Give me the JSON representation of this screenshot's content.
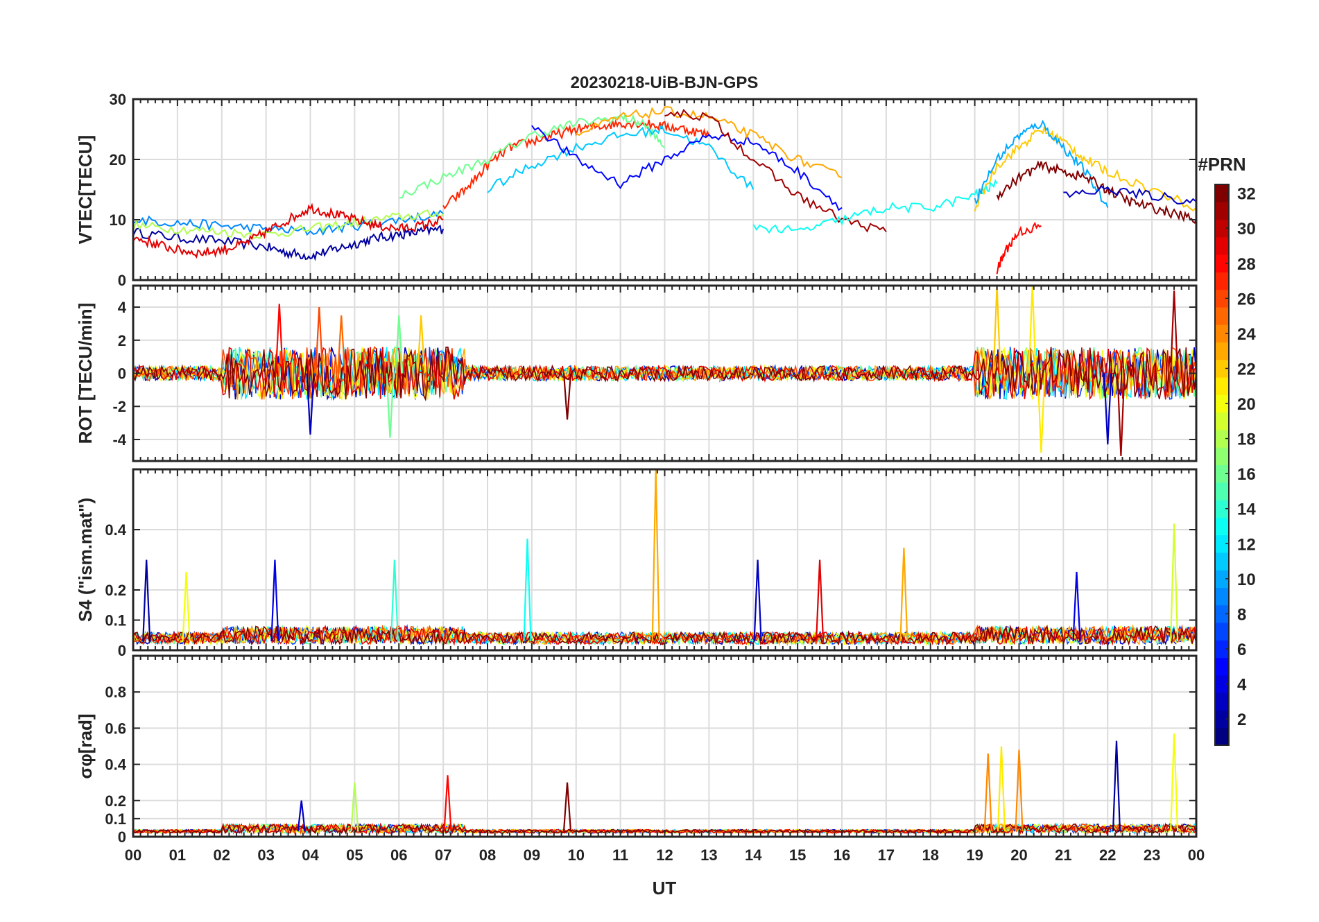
{
  "chart_data": [
    {
      "type": "line",
      "title": "20230218-UiB-BJN-GPS",
      "ylabel": "VTEC[TECU]",
      "ylim": [
        0,
        30
      ],
      "yticks": [
        "0",
        "10",
        "20",
        "30"
      ],
      "xlim": [
        0,
        24
      ],
      "x_unit": "hours UT",
      "grid": true,
      "series_note": "one trace per satellite PRN (1-32), colored by PRN",
      "series": [
        {
          "prn": 2,
          "x": [
            0,
            1,
            2,
            3,
            3.5,
            4,
            4.5,
            5,
            5.5,
            6,
            6.5,
            7
          ],
          "values": [
            8,
            7,
            6.5,
            5.5,
            4.5,
            4,
            5,
            6,
            7,
            7.5,
            8,
            8.5
          ]
        },
        {
          "prn": 9,
          "x": [
            0,
            1,
            2,
            3,
            4,
            5,
            6,
            7
          ],
          "values": [
            10,
            9.5,
            9,
            8.5,
            8,
            9,
            10,
            11
          ]
        },
        {
          "prn": 18,
          "x": [
            0,
            1,
            2,
            3,
            4,
            5,
            6,
            7
          ],
          "values": [
            9,
            8.5,
            8,
            7.5,
            8.5,
            9.5,
            10.5,
            11
          ]
        },
        {
          "prn": 29,
          "x": [
            0,
            0.5,
            1,
            1.5,
            2,
            2.5,
            3,
            3.5,
            4,
            4.5,
            5,
            5.5,
            6,
            6.5,
            7
          ],
          "values": [
            7,
            6,
            5,
            4.5,
            5,
            6,
            8,
            10,
            12,
            11,
            10,
            9,
            8.5,
            9,
            10
          ]
        },
        {
          "prn": 27,
          "x": [
            7,
            7.5,
            8,
            8.5,
            9,
            9.5,
            10,
            10.5,
            11,
            11.5,
            12,
            12.5,
            13
          ],
          "values": [
            12,
            15,
            19,
            22,
            23,
            24,
            25,
            25.5,
            26,
            26,
            25.5,
            25,
            24
          ]
        },
        {
          "prn": 16,
          "x": [
            6,
            7,
            8,
            9,
            10,
            11,
            11.5,
            12
          ],
          "values": [
            14,
            17,
            20,
            24,
            26,
            27,
            26,
            22
          ]
        },
        {
          "prn": 11,
          "x": [
            8,
            9,
            10,
            11,
            12,
            13,
            14
          ],
          "values": [
            15,
            19,
            22,
            24,
            25,
            22,
            15
          ]
        },
        {
          "prn": 5,
          "x": [
            9,
            10,
            11,
            12,
            13,
            14,
            15,
            16
          ],
          "values": [
            26,
            20,
            16,
            20,
            24,
            23,
            18,
            12
          ]
        },
        {
          "prn": 23,
          "x": [
            10,
            11,
            12,
            13,
            14,
            15,
            16
          ],
          "values": [
            24,
            27,
            28,
            27,
            24,
            20,
            17
          ]
        },
        {
          "prn": 31,
          "x": [
            12,
            13,
            14,
            15,
            16,
            17
          ],
          "values": [
            28,
            27,
            20,
            14,
            10,
            8
          ]
        },
        {
          "prn": 13,
          "x": [
            14,
            15,
            16,
            17,
            18,
            19,
            19.5
          ],
          "values": [
            9,
            8,
            10,
            12,
            12,
            14,
            16
          ]
        },
        {
          "prn": 22,
          "x": [
            19,
            19.5,
            20,
            20.5,
            21,
            21.5,
            22,
            23,
            24
          ],
          "values": [
            12,
            19,
            22,
            25,
            23,
            20,
            18,
            15,
            12
          ]
        },
        {
          "prn": 10,
          "x": [
            19,
            19.5,
            20,
            20.5,
            21,
            21.5,
            22
          ],
          "values": [
            13,
            20,
            24,
            26,
            22,
            18,
            12
          ]
        },
        {
          "prn": 32,
          "x": [
            19.5,
            20,
            20.5,
            21,
            21.5,
            22,
            22.5,
            23,
            23.5,
            24
          ],
          "values": [
            14,
            17,
            19,
            18,
            17,
            15,
            13,
            12,
            11,
            10
          ]
        },
        {
          "prn": 28,
          "x": [
            19.5,
            19.7,
            20,
            20.5
          ],
          "values": [
            1.5,
            5,
            8,
            9
          ]
        },
        {
          "prn": 3,
          "x": [
            21,
            22,
            23,
            24
          ],
          "values": [
            14,
            15,
            14,
            13
          ]
        }
      ]
    },
    {
      "type": "line",
      "ylabel": "ROT [TECU/min]",
      "ylim": [
        -5.3,
        5.3
      ],
      "yticks": [
        "-4",
        "-2",
        "0",
        "2",
        "4"
      ],
      "xlim": [
        0,
        24
      ],
      "grid": true,
      "series_note": "rate of TEC per PRN; noisy traces around 0, stronger spikes 02-07 UT and 19-24 UT",
      "spikes": [
        {
          "x": 3.3,
          "value": 4.2,
          "prn": 28
        },
        {
          "x": 4.2,
          "value": 4.0,
          "prn": 26
        },
        {
          "x": 4.7,
          "value": 3.5,
          "prn": 25
        },
        {
          "x": 6.0,
          "value": 3.5,
          "prn": 16
        },
        {
          "x": 6.5,
          "value": 3.5,
          "prn": 22
        },
        {
          "x": 5.8,
          "value": -3.9,
          "prn": 16
        },
        {
          "x": 4.0,
          "value": -3.7,
          "prn": 3
        },
        {
          "x": 9.8,
          "value": -2.8,
          "prn": 32
        },
        {
          "x": 19.5,
          "value": 5.3,
          "prn": 22
        },
        {
          "x": 20.3,
          "value": 5.3,
          "prn": 21
        },
        {
          "x": 20.5,
          "value": -4.8,
          "prn": 21
        },
        {
          "x": 22.3,
          "value": -5.0,
          "prn": 31
        },
        {
          "x": 23.5,
          "value": 5.0,
          "prn": 31
        },
        {
          "x": 22.0,
          "value": -4.3,
          "prn": 3
        }
      ]
    },
    {
      "type": "line",
      "ylabel": "S4 (\"ism.mat\")",
      "ylim": [
        0,
        0.6
      ],
      "yticks": [
        "0",
        "0.1",
        "0.2",
        "0.4"
      ],
      "xlim": [
        0,
        24
      ],
      "grid": true,
      "series_note": "amplitude scintillation index per PRN",
      "spikes": [
        {
          "x": 0.3,
          "value": 0.3,
          "prn": 2
        },
        {
          "x": 1.2,
          "value": 0.26,
          "prn": 20
        },
        {
          "x": 3.2,
          "value": 0.3,
          "prn": 4
        },
        {
          "x": 5.9,
          "value": 0.3,
          "prn": 14
        },
        {
          "x": 8.9,
          "value": 0.37,
          "prn": 13
        },
        {
          "x": 11.8,
          "value": 0.6,
          "prn": 23
        },
        {
          "x": 14.1,
          "value": 0.3,
          "prn": 3
        },
        {
          "x": 15.5,
          "value": 0.3,
          "prn": 29
        },
        {
          "x": 17.4,
          "value": 0.34,
          "prn": 23
        },
        {
          "x": 21.3,
          "value": 0.26,
          "prn": 4
        },
        {
          "x": 23.5,
          "value": 0.42,
          "prn": 19
        }
      ]
    },
    {
      "type": "line",
      "ylabel": "σφ[rad]",
      "ylim": [
        0,
        1.0
      ],
      "yticks": [
        "0",
        "0.1",
        "0.2",
        "0.4",
        "0.6",
        "0.8"
      ],
      "xlim": [
        0,
        24
      ],
      "xlabel": "UT",
      "xticks": [
        "00",
        "01",
        "02",
        "03",
        "04",
        "05",
        "06",
        "07",
        "08",
        "09",
        "10",
        "11",
        "12",
        "13",
        "14",
        "15",
        "16",
        "17",
        "18",
        "19",
        "20",
        "21",
        "22",
        "23",
        "00"
      ],
      "grid": true,
      "series_note": "phase scintillation index per PRN",
      "spikes": [
        {
          "x": 3.8,
          "value": 0.2,
          "prn": 3
        },
        {
          "x": 5.0,
          "value": 0.3,
          "prn": 18
        },
        {
          "x": 7.1,
          "value": 0.34,
          "prn": 28
        },
        {
          "x": 9.8,
          "value": 0.3,
          "prn": 32
        },
        {
          "x": 19.3,
          "value": 0.46,
          "prn": 24
        },
        {
          "x": 19.6,
          "value": 0.5,
          "prn": 21
        },
        {
          "x": 20.0,
          "value": 0.48,
          "prn": 24
        },
        {
          "x": 22.2,
          "value": 0.53,
          "prn": 2
        },
        {
          "x": 23.5,
          "value": 0.57,
          "prn": 20
        }
      ]
    }
  ],
  "colorbar": {
    "label": "#PRN",
    "min": 1,
    "max": 32,
    "tick_labels": [
      "2",
      "4",
      "6",
      "8",
      "10",
      "12",
      "14",
      "16",
      "18",
      "20",
      "22",
      "24",
      "26",
      "28",
      "30",
      "32"
    ],
    "colormap": "jet"
  }
}
